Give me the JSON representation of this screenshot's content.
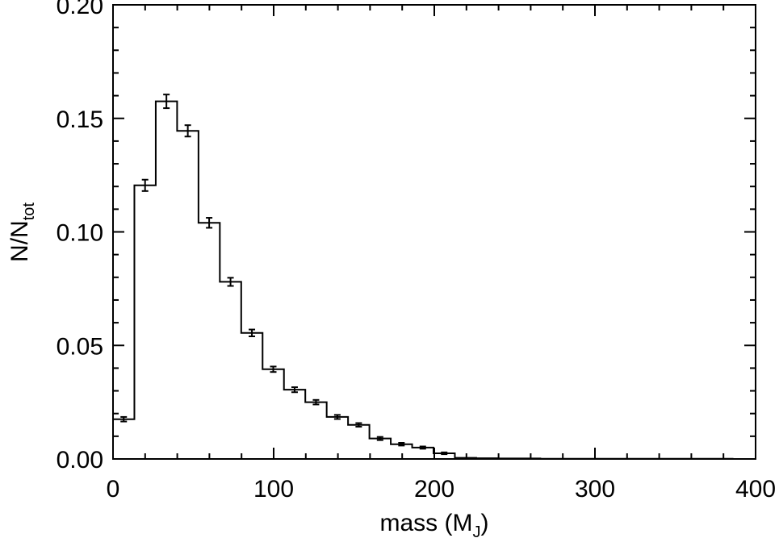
{
  "chart_data": {
    "type": "histogram",
    "xlabel": {
      "main": "mass (M",
      "sub": "J",
      "close": ")"
    },
    "ylabel": {
      "main": "N/N",
      "sub": "tot"
    },
    "xlim": [
      0,
      400
    ],
    "ylim": [
      0,
      0.2
    ],
    "x_ticks": [
      0,
      100,
      200,
      300,
      400
    ],
    "x_tick_labels": [
      "0",
      "100",
      "200",
      "300",
      "400"
    ],
    "y_ticks": [
      0,
      0.05,
      0.1,
      0.15,
      0.2
    ],
    "y_tick_labels": [
      "0.00",
      "0.05",
      "0.10",
      "0.15",
      "0.20"
    ],
    "bin_width": 13.3,
    "bin_centers": [
      6.65,
      19.95,
      33.25,
      46.55,
      59.85,
      73.15,
      86.45,
      99.75,
      113.05,
      126.35,
      139.65,
      152.95,
      166.25,
      179.55,
      192.85,
      206.15,
      219.45,
      232.75,
      246.05,
      259.35,
      272.65,
      285.95,
      299.25,
      312.55,
      325.85,
      339.15,
      352.45,
      365.75,
      379.05,
      392.35
    ],
    "values": [
      0.0175,
      0.1205,
      0.1575,
      0.1445,
      0.104,
      0.078,
      0.0555,
      0.0395,
      0.0305,
      0.025,
      0.0185,
      0.015,
      0.009,
      0.0065,
      0.005,
      0.0025,
      0.0005,
      0.0003,
      0.0002,
      0.0002,
      0.0001,
      0.0001,
      0.0001,
      0.0001,
      0.0001,
      0.0001,
      0.0001,
      0.0001,
      0.0001,
      0.0
    ],
    "errors": [
      0.001,
      0.0025,
      0.003,
      0.0025,
      0.0022,
      0.0018,
      0.0015,
      0.0012,
      0.0011,
      0.001,
      0.0009,
      0.0008,
      0.0007,
      0.0006,
      0.0005,
      0.0004,
      0,
      0,
      0,
      0,
      0,
      0,
      0,
      0,
      0,
      0,
      0,
      0,
      0,
      0
    ],
    "grid": false,
    "legend": "none"
  }
}
